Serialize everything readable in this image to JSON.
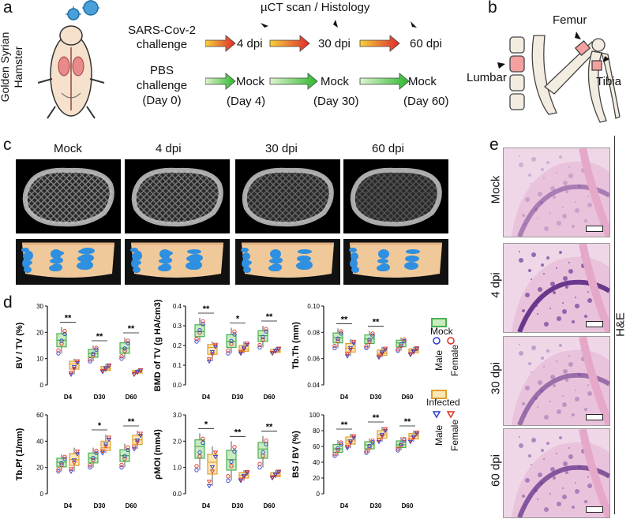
{
  "panel_a": {
    "letter": "a",
    "species": "Golden Syrian Hamster",
    "sars_challenge": [
      "SARS-Cov-2",
      "challenge"
    ],
    "pbs_challenge": [
      "PBS",
      "challenge",
      "(Day 0)"
    ],
    "header": "µCT scan / Histology",
    "infected_timepoints": [
      "4 dpi",
      "30 dpi",
      "60 dpi"
    ],
    "mock_labels": [
      "Mock",
      "Mock",
      "Mock"
    ],
    "mock_days": [
      "(Day 4)",
      "(Day 30)",
      "(Day 60)"
    ]
  },
  "panel_b": {
    "letter": "b",
    "labels": {
      "femur": "Femur",
      "lumbar": "Lumbar",
      "tibia": "Tibia"
    }
  },
  "panel_c": {
    "letter": "c",
    "columns": [
      "Mock",
      "4 dpi",
      "30 dpi",
      "60 dpi"
    ]
  },
  "panel_e": {
    "letter": "e",
    "rows": [
      "Mock",
      "4 dpi",
      "30 dpi",
      "60 dpi"
    ],
    "stain": "H&E"
  },
  "panel_d": {
    "letter": "d",
    "legend": {
      "mock": "Mock",
      "infected": "Infected",
      "male": "Male",
      "female": "Female"
    },
    "colors": {
      "mock_box": "#4caf50",
      "mock_fill": "#c8ecc0",
      "infected_box": "#e0a030",
      "infected_fill": "#fbe6b8",
      "male": "#2a3fd0",
      "female": "#e03020"
    }
  },
  "chart_data": [
    {
      "type": "box",
      "ylabel": "BV / TV (%)",
      "categories": [
        "D4",
        "D30",
        "D60"
      ],
      "ylim": [
        0,
        30
      ],
      "yticks": [
        "0",
        "10",
        "20",
        "30"
      ],
      "series": [
        {
          "name": "Mock",
          "values": [
            17,
            12,
            14
          ],
          "range": [
            [
              12,
              22
            ],
            [
              9,
              15
            ],
            [
              10,
              18
            ]
          ]
        },
        {
          "name": "Infected",
          "values": [
            8,
            6,
            5
          ],
          "range": [
            [
              4,
              10
            ],
            [
              5,
              8
            ],
            [
              4,
              6
            ]
          ]
        }
      ],
      "significance": [
        "**",
        "**",
        "**"
      ]
    },
    {
      "type": "box",
      "ylabel": "BMD of TV (g HA/cm3)",
      "categories": [
        "D4",
        "D30",
        "D60"
      ],
      "ylim": [
        0.0,
        0.4
      ],
      "yticks": [
        "0.0",
        "0.1",
        "0.2",
        "0.3",
        "0.4"
      ],
      "series": [
        {
          "name": "Mock",
          "values": [
            0.27,
            0.22,
            0.25
          ],
          "range": [
            [
              0.22,
              0.34
            ],
            [
              0.16,
              0.29
            ],
            [
              0.19,
              0.3
            ]
          ]
        },
        {
          "name": "Infected",
          "values": [
            0.19,
            0.18,
            0.17
          ],
          "range": [
            [
              0.12,
              0.22
            ],
            [
              0.16,
              0.22
            ],
            [
              0.16,
              0.19
            ]
          ]
        }
      ],
      "significance": [
        "**",
        "*",
        "**"
      ]
    },
    {
      "type": "box",
      "ylabel": "Tb.Th (mm)",
      "categories": [
        "D4",
        "D30",
        "D60"
      ],
      "ylim": [
        0.04,
        0.1
      ],
      "yticks": [
        "0.04",
        "0.06",
        "0.08",
        "0.10"
      ],
      "series": [
        {
          "name": "Mock",
          "values": [
            0.076,
            0.075,
            0.072
          ],
          "range": [
            [
              0.068,
              0.083
            ],
            [
              0.068,
              0.081
            ],
            [
              0.066,
              0.076
            ]
          ]
        },
        {
          "name": "Infected",
          "values": [
            0.068,
            0.064,
            0.066
          ],
          "range": [
            [
              0.062,
              0.075
            ],
            [
              0.061,
              0.069
            ],
            [
              0.063,
              0.069
            ]
          ]
        }
      ],
      "significance": [
        "**",
        "**",
        ""
      ]
    },
    {
      "type": "box",
      "ylabel": "Tb.Pf (1/mm)",
      "categories": [
        "D4",
        "D30",
        "D60"
      ],
      "ylim": [
        0,
        60
      ],
      "yticks": [
        "0",
        "20",
        "40",
        "60"
      ],
      "series": [
        {
          "name": "Mock",
          "values": [
            24,
            27,
            29
          ],
          "range": [
            [
              17,
              30
            ],
            [
              20,
              35
            ],
            [
              20,
              38
            ]
          ]
        },
        {
          "name": "Infected",
          "values": [
            26,
            35,
            41
          ],
          "range": [
            [
              17,
              35
            ],
            [
              31,
              45
            ],
            [
              34,
              48
            ]
          ]
        }
      ],
      "significance": [
        "",
        "*",
        "**"
      ]
    },
    {
      "type": "box",
      "ylabel": "ρMOI (mm4)",
      "categories": [
        "D4",
        "D30",
        "D60"
      ],
      "ylim": [
        0.0,
        3.0
      ],
      "yticks": [
        "0.0",
        "1.0",
        "2.0",
        "3.0"
      ],
      "series": [
        {
          "name": "Mock",
          "values": [
            1.8,
            1.3,
            1.7
          ],
          "range": [
            [
              0.9,
              2.3
            ],
            [
              0.5,
              2.0
            ],
            [
              1.0,
              2.2
            ]
          ]
        },
        {
          "name": "Infected",
          "values": [
            1.2,
            0.7,
            0.7
          ],
          "range": [
            [
              0.3,
              1.8
            ],
            [
              0.5,
              0.9
            ],
            [
              0.6,
              0.9
            ]
          ]
        }
      ],
      "significance": [
        "*",
        "**",
        "**"
      ]
    },
    {
      "type": "box",
      "ylabel": "BS / BV (%)",
      "categories": [
        "D4",
        "D30",
        "D60"
      ],
      "ylim": [
        0,
        100
      ],
      "yticks": [
        "0",
        "20",
        "40",
        "60",
        "80",
        "100"
      ],
      "series": [
        {
          "name": "Mock",
          "values": [
            57,
            62,
            62
          ],
          "range": [
            [
              48,
              68
            ],
            [
              52,
              70
            ],
            [
              55,
              72
            ]
          ]
        },
        {
          "name": "Infected",
          "values": [
            68,
            75,
            73
          ],
          "range": [
            [
              58,
              76
            ],
            [
              66,
              85
            ],
            [
              66,
              80
            ]
          ]
        }
      ],
      "significance": [
        "**",
        "**",
        "**"
      ]
    }
  ]
}
